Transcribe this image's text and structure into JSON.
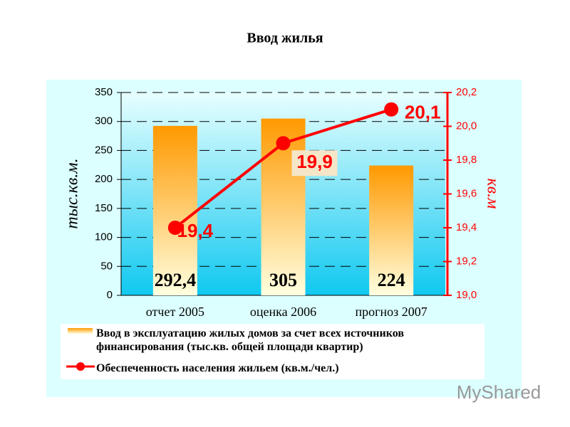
{
  "title": "Ввод жилья",
  "watermark": "MyShared",
  "chart_data": {
    "type": "bar-line",
    "categories": [
      "отчет 2005",
      "оценка 2006",
      "прогноз 2007"
    ],
    "ylabel": "тыс.кв.м.",
    "y2label": "кв.м",
    "ylim": [
      0,
      350
    ],
    "yticks": [
      0,
      50,
      100,
      150,
      200,
      250,
      300,
      350
    ],
    "y2lim": [
      19.0,
      20.2
    ],
    "y2ticks": [
      {
        "value": 19.0,
        "label": "19,0"
      },
      {
        "value": 19.2,
        "label": "19,2"
      },
      {
        "value": 19.4,
        "label": "19,4"
      },
      {
        "value": 19.6,
        "label": "19,6"
      },
      {
        "value": 19.8,
        "label": "19,8"
      },
      {
        "value": 20.0,
        "label": "20,0"
      },
      {
        "value": 20.2,
        "label": "20,2"
      }
    ],
    "grid": true,
    "series": [
      {
        "name": "Ввод в эксплуатацию жилых домов за счет всех источников финансирования (тыс.кв. общей площади квартир)",
        "type": "bar",
        "color": "#ff9900",
        "values": [
          292.4,
          305,
          224
        ],
        "value_labels": [
          "292,4",
          "305",
          "224"
        ]
      },
      {
        "name": "Обеспеченность населения жильем (кв.м./чел.)",
        "type": "line",
        "axis": "y2",
        "color": "#ff0000",
        "values": [
          19.4,
          19.9,
          20.1
        ],
        "value_labels": [
          "19,4",
          "19,9",
          "20,1"
        ]
      }
    ]
  }
}
